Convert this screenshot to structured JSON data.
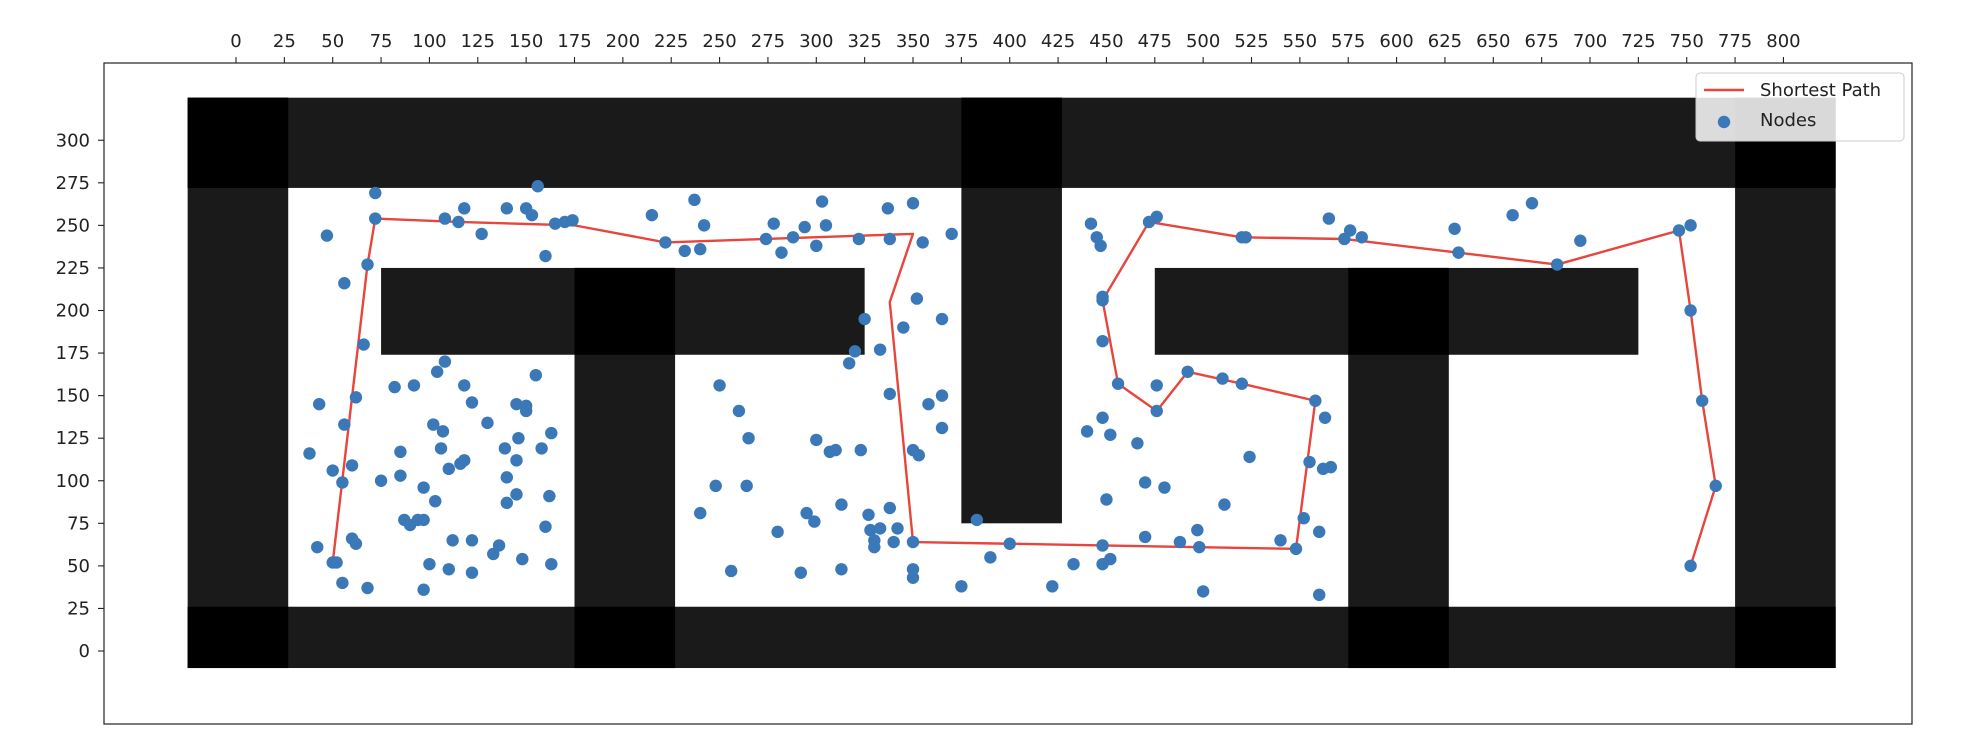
{
  "chart_data": {
    "type": "scatter",
    "x_axis": {
      "position": "top",
      "range": [
        -25,
        825
      ],
      "ticks": [
        0,
        25,
        50,
        75,
        100,
        125,
        150,
        175,
        200,
        225,
        250,
        275,
        300,
        325,
        350,
        375,
        400,
        425,
        450,
        475,
        500,
        525,
        550,
        575,
        600,
        625,
        650,
        675,
        700,
        725,
        750,
        775,
        800
      ]
    },
    "y_axis": {
      "range": [
        -25,
        335
      ],
      "ticks": [
        0,
        25,
        50,
        75,
        100,
        125,
        150,
        175,
        200,
        225,
        250,
        275,
        300
      ]
    },
    "grid": false,
    "legend": {
      "placement": "top-right",
      "entries": [
        {
          "label": "Shortest Path",
          "kind": "line",
          "color": "#e8453c"
        },
        {
          "label": "Nodes",
          "kind": "marker",
          "color": "#3a78b8"
        }
      ]
    },
    "map_image": {
      "description": "occupancy grid, 25-unit cells; obstacles drawn dark",
      "obstacle_colors": {
        "wall": "#1a1a1a",
        "overlap": "#000000"
      },
      "walls": [
        {
          "x0": -25,
          "x1": 775,
          "y0": -10,
          "y1": 26
        },
        {
          "x0": -25,
          "x1": 775,
          "y0": 272,
          "y1": 325
        },
        {
          "x0": -25,
          "x1": 27,
          "y0": -10,
          "y1": 325
        },
        {
          "x0": 775,
          "x1": 827,
          "y0": -10,
          "y1": 325
        },
        {
          "x0": 175,
          "x1": 227,
          "y0": -10,
          "y1": 225
        },
        {
          "x0": 75,
          "x1": 325,
          "y0": 174,
          "y1": 225
        },
        {
          "x0": 375,
          "x1": 427,
          "y0": 75,
          "y1": 325
        },
        {
          "x0": 575,
          "x1": 627,
          "y0": -10,
          "y1": 225
        },
        {
          "x0": 475,
          "x1": 725,
          "y0": 174,
          "y1": 225
        }
      ],
      "overlaps": [
        {
          "x0": -25,
          "x1": 27,
          "y0": -10,
          "y1": 26
        },
        {
          "x0": -25,
          "x1": 27,
          "y0": 272,
          "y1": 325
        },
        {
          "x0": 775,
          "x1": 827,
          "y0": -10,
          "y1": 26
        },
        {
          "x0": 775,
          "x1": 827,
          "y0": 272,
          "y1": 325
        },
        {
          "x0": 175,
          "x1": 227,
          "y0": -10,
          "y1": 26
        },
        {
          "x0": 175,
          "x1": 227,
          "y0": 174,
          "y1": 225
        },
        {
          "x0": 375,
          "x1": 427,
          "y0": 272,
          "y1": 325
        },
        {
          "x0": 575,
          "x1": 627,
          "y0": -10,
          "y1": 26
        },
        {
          "x0": 575,
          "x1": 627,
          "y0": 174,
          "y1": 225
        }
      ]
    },
    "series": [
      {
        "name": "Shortest Path",
        "kind": "line",
        "color": "#e8453c",
        "points": [
          [
            50,
            52
          ],
          [
            68,
            227
          ],
          [
            72,
            254
          ],
          [
            115,
            252
          ],
          [
            175,
            250
          ],
          [
            222,
            240
          ],
          [
            350,
            245
          ],
          [
            338,
            205
          ],
          [
            350,
            64
          ],
          [
            400,
            63
          ],
          [
            448,
            62
          ],
          [
            548,
            60
          ],
          [
            558,
            147
          ],
          [
            520,
            157
          ],
          [
            492,
            164
          ],
          [
            476,
            141
          ],
          [
            456,
            157
          ],
          [
            448,
            206
          ],
          [
            472,
            252
          ],
          [
            520,
            243
          ],
          [
            573,
            242
          ],
          [
            683,
            227
          ],
          [
            746,
            247
          ],
          [
            752,
            200
          ],
          [
            758,
            147
          ],
          [
            765,
            97
          ],
          [
            752,
            50
          ]
        ]
      },
      {
        "name": "Nodes",
        "kind": "scatter",
        "color": "#3a78b8",
        "points": [
          [
            156,
            273
          ],
          [
            72,
            269
          ],
          [
            118,
            260
          ],
          [
            140,
            260
          ],
          [
            150,
            260
          ],
          [
            153,
            256
          ],
          [
            165,
            251
          ],
          [
            170,
            252
          ],
          [
            174,
            253
          ],
          [
            115,
            252
          ],
          [
            108,
            254
          ],
          [
            72,
            254
          ],
          [
            47,
            244
          ],
          [
            127,
            245
          ],
          [
            160,
            232
          ],
          [
            68,
            227
          ],
          [
            56,
            216
          ],
          [
            215,
            256
          ],
          [
            237,
            265
          ],
          [
            242,
            250
          ],
          [
            222,
            240
          ],
          [
            232,
            235
          ],
          [
            240,
            236
          ],
          [
            278,
            251
          ],
          [
            303,
            264
          ],
          [
            305,
            250
          ],
          [
            294,
            249
          ],
          [
            288,
            243
          ],
          [
            274,
            242
          ],
          [
            282,
            234
          ],
          [
            300,
            238
          ],
          [
            322,
            242
          ],
          [
            337,
            260
          ],
          [
            350,
            263
          ],
          [
            338,
            242
          ],
          [
            355,
            240
          ],
          [
            370,
            245
          ],
          [
            352,
            207
          ],
          [
            325,
            195
          ],
          [
            345,
            190
          ],
          [
            365,
            195
          ],
          [
            66,
            180
          ],
          [
            320,
            176
          ],
          [
            317,
            169
          ],
          [
            333,
            177
          ],
          [
            108,
            170
          ],
          [
            104,
            164
          ],
          [
            82,
            155
          ],
          [
            92,
            156
          ],
          [
            118,
            156
          ],
          [
            155,
            162
          ],
          [
            62,
            149
          ],
          [
            43,
            145
          ],
          [
            122,
            146
          ],
          [
            145,
            145
          ],
          [
            150,
            144
          ],
          [
            150,
            141
          ],
          [
            250,
            156
          ],
          [
            260,
            141
          ],
          [
            338,
            151
          ],
          [
            358,
            145
          ],
          [
            365,
            150
          ],
          [
            56,
            133
          ],
          [
            102,
            133
          ],
          [
            107,
            129
          ],
          [
            130,
            134
          ],
          [
            146,
            125
          ],
          [
            163,
            128
          ],
          [
            265,
            125
          ],
          [
            300,
            124
          ],
          [
            365,
            131
          ],
          [
            38,
            116
          ],
          [
            85,
            117
          ],
          [
            106,
            119
          ],
          [
            116,
            110
          ],
          [
            118,
            112
          ],
          [
            139,
            119
          ],
          [
            158,
            119
          ],
          [
            307,
            117
          ],
          [
            310,
            118
          ],
          [
            323,
            118
          ],
          [
            350,
            118
          ],
          [
            353,
            115
          ],
          [
            60,
            109
          ],
          [
            110,
            107
          ],
          [
            145,
            112
          ],
          [
            50,
            106
          ],
          [
            75,
            100
          ],
          [
            55,
            99
          ],
          [
            85,
            103
          ],
          [
            140,
            102
          ],
          [
            97,
            96
          ],
          [
            248,
            97
          ],
          [
            264,
            97
          ],
          [
            145,
            92
          ],
          [
            162,
            91
          ],
          [
            103,
            88
          ],
          [
            140,
            87
          ],
          [
            313,
            86
          ],
          [
            338,
            84
          ],
          [
            87,
            77
          ],
          [
            90,
            74
          ],
          [
            94,
            77
          ],
          [
            97,
            77
          ],
          [
            240,
            81
          ],
          [
            295,
            81
          ],
          [
            299,
            76
          ],
          [
            327,
            80
          ],
          [
            160,
            73
          ],
          [
            328,
            71
          ],
          [
            333,
            72
          ],
          [
            342,
            72
          ],
          [
            280,
            70
          ],
          [
            42,
            61
          ],
          [
            60,
            66
          ],
          [
            62,
            63
          ],
          [
            112,
            65
          ],
          [
            122,
            65
          ],
          [
            136,
            62
          ],
          [
            330,
            65
          ],
          [
            340,
            64
          ],
          [
            350,
            64
          ],
          [
            330,
            61
          ],
          [
            50,
            52
          ],
          [
            52,
            52
          ],
          [
            100,
            51
          ],
          [
            110,
            48
          ],
          [
            122,
            46
          ],
          [
            133,
            57
          ],
          [
            148,
            54
          ],
          [
            163,
            51
          ],
          [
            256,
            47
          ],
          [
            292,
            46
          ],
          [
            313,
            48
          ],
          [
            350,
            48
          ],
          [
            350,
            43
          ],
          [
            55,
            40
          ],
          [
            68,
            37
          ],
          [
            97,
            36
          ],
          [
            375,
            38
          ],
          [
            383,
            77
          ],
          [
            390,
            55
          ],
          [
            400,
            63
          ],
          [
            422,
            38
          ],
          [
            433,
            51
          ],
          [
            448,
            51
          ],
          [
            452,
            54
          ],
          [
            450,
            89
          ],
          [
            448,
            62
          ],
          [
            440,
            129
          ],
          [
            448,
            137
          ],
          [
            452,
            127
          ],
          [
            466,
            122
          ],
          [
            470,
            99
          ],
          [
            480,
            96
          ],
          [
            470,
            67
          ],
          [
            488,
            64
          ],
          [
            497,
            71
          ],
          [
            498,
            61
          ],
          [
            500,
            35
          ],
          [
            511,
            86
          ],
          [
            524,
            114
          ],
          [
            540,
            65
          ],
          [
            548,
            60
          ],
          [
            552,
            78
          ],
          [
            555,
            111
          ],
          [
            560,
            70
          ],
          [
            562,
            107
          ],
          [
            566,
            108
          ],
          [
            563,
            137
          ],
          [
            558,
            147
          ],
          [
            560,
            33
          ],
          [
            476,
            141
          ],
          [
            456,
            157
          ],
          [
            476,
            156
          ],
          [
            492,
            164
          ],
          [
            510,
            160
          ],
          [
            520,
            157
          ],
          [
            448,
            182
          ],
          [
            448,
            206
          ],
          [
            448,
            208
          ],
          [
            442,
            251
          ],
          [
            445,
            243
          ],
          [
            447,
            238
          ],
          [
            472,
            252
          ],
          [
            476,
            255
          ],
          [
            520,
            243
          ],
          [
            522,
            243
          ],
          [
            565,
            254
          ],
          [
            573,
            242
          ],
          [
            576,
            247
          ],
          [
            582,
            243
          ],
          [
            630,
            248
          ],
          [
            632,
            234
          ],
          [
            660,
            256
          ],
          [
            670,
            263
          ],
          [
            683,
            227
          ],
          [
            695,
            241
          ],
          [
            746,
            247
          ],
          [
            752,
            250
          ],
          [
            752,
            200
          ],
          [
            758,
            147
          ],
          [
            765,
            97
          ],
          [
            752,
            50
          ]
        ]
      }
    ]
  }
}
